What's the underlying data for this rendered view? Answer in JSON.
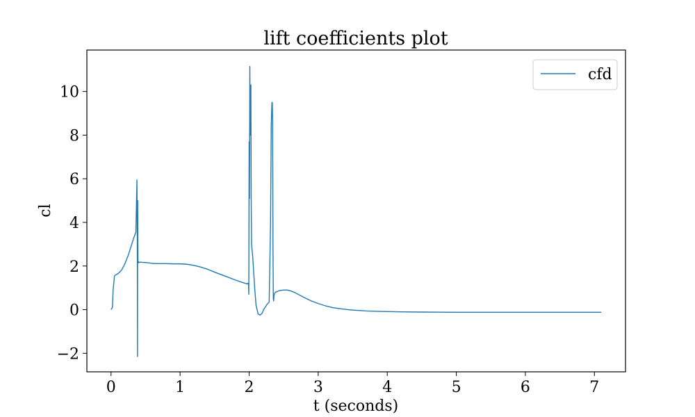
{
  "chart_data": {
    "type": "line",
    "title": "lift coefficients plot",
    "xlabel": "t (seconds)",
    "ylabel": "cl",
    "xlim": [
      -0.35,
      7.45
    ],
    "ylim": [
      -2.85,
      11.9
    ],
    "xticks": [
      0,
      1,
      2,
      3,
      4,
      5,
      6,
      7
    ],
    "xtick_labels": [
      "0",
      "1",
      "2",
      "3",
      "4",
      "5",
      "6",
      "7"
    ],
    "yticks": [
      -2,
      0,
      2,
      4,
      6,
      8,
      10
    ],
    "ytick_labels": [
      "−2",
      "0",
      "2",
      "4",
      "6",
      "8",
      "10"
    ],
    "grid": false,
    "legend": "top-right",
    "series": [
      {
        "name": "cfd",
        "color": "#1f77b4",
        "x": [
          0.0,
          0.02,
          0.03,
          0.05,
          0.07,
          0.1,
          0.15,
          0.2,
          0.25,
          0.3,
          0.33,
          0.36,
          0.375,
          0.38,
          0.383,
          0.386,
          0.39,
          0.393,
          0.396,
          0.4,
          0.42,
          0.45,
          0.5,
          0.6,
          0.7,
          0.8,
          0.9,
          1.0,
          1.1,
          1.2,
          1.3,
          1.4,
          1.5,
          1.6,
          1.7,
          1.8,
          1.9,
          1.97,
          1.99,
          1.995,
          2.0,
          2.005,
          2.01,
          2.015,
          2.02,
          2.025,
          2.03,
          2.035,
          2.04,
          2.05,
          2.06,
          2.08,
          2.1,
          2.13,
          2.16,
          2.19,
          2.21,
          2.23,
          2.26,
          2.29,
          2.31,
          2.32,
          2.33,
          2.335,
          2.34,
          2.345,
          2.35,
          2.355,
          2.36,
          2.37,
          2.38,
          2.4,
          2.42,
          2.45,
          2.5,
          2.55,
          2.6,
          2.65,
          2.7,
          2.8,
          2.9,
          3.0,
          3.1,
          3.2,
          3.3,
          3.4,
          3.5,
          3.7,
          3.9,
          4.2,
          4.5,
          5.0,
          5.5,
          6.0,
          6.5,
          7.1
        ],
        "y": [
          0.0,
          0.1,
          0.9,
          1.55,
          1.6,
          1.65,
          1.8,
          2.1,
          2.5,
          3.0,
          3.3,
          3.55,
          5.95,
          3.5,
          -2.15,
          5.0,
          2.15,
          2.15,
          2.2,
          2.15,
          2.18,
          2.17,
          2.16,
          2.12,
          2.11,
          2.11,
          2.1,
          2.1,
          2.08,
          2.03,
          1.95,
          1.85,
          1.72,
          1.6,
          1.48,
          1.36,
          1.25,
          1.18,
          1.22,
          0.7,
          7.7,
          5.1,
          11.15,
          8.0,
          9.8,
          10.3,
          5.0,
          3.0,
          2.8,
          2.5,
          2.0,
          1.0,
          0.2,
          -0.2,
          -0.25,
          -0.15,
          0.0,
          0.1,
          0.25,
          0.35,
          4.0,
          8.5,
          9.5,
          9.5,
          8.5,
          3.0,
          0.5,
          0.4,
          0.65,
          0.75,
          0.8,
          0.82,
          0.85,
          0.88,
          0.9,
          0.9,
          0.86,
          0.8,
          0.72,
          0.55,
          0.4,
          0.28,
          0.18,
          0.1,
          0.05,
          0.01,
          -0.02,
          -0.06,
          -0.08,
          -0.1,
          -0.11,
          -0.12,
          -0.12,
          -0.12,
          -0.12,
          -0.12
        ]
      }
    ]
  }
}
